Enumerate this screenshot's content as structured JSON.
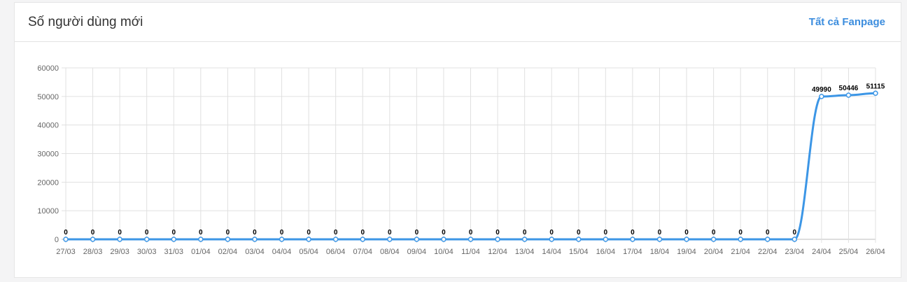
{
  "header": {
    "title": "Số người dùng mới",
    "link_label": "Tất cả Fanpage"
  },
  "colors": {
    "line": "#3c96e6",
    "grid": "#e0e0e0"
  },
  "chart_data": {
    "type": "line",
    "categories": [
      "27/03",
      "28/03",
      "29/03",
      "30/03",
      "31/03",
      "01/04",
      "02/04",
      "03/04",
      "04/04",
      "05/04",
      "06/04",
      "07/04",
      "08/04",
      "09/04",
      "10/04",
      "11/04",
      "12/04",
      "13/04",
      "14/04",
      "15/04",
      "16/04",
      "17/04",
      "18/04",
      "19/04",
      "20/04",
      "21/04",
      "22/04",
      "23/04",
      "24/04",
      "25/04",
      "26/04"
    ],
    "values": [
      0,
      0,
      0,
      0,
      0,
      0,
      0,
      0,
      0,
      0,
      0,
      0,
      0,
      0,
      0,
      0,
      0,
      0,
      0,
      0,
      0,
      0,
      0,
      0,
      0,
      0,
      0,
      0,
      49990,
      50446,
      51115
    ],
    "ylim": [
      0,
      60000
    ],
    "yticks": [
      0,
      10000,
      20000,
      30000,
      40000,
      50000,
      60000
    ],
    "grid": true,
    "data_labels": true
  }
}
